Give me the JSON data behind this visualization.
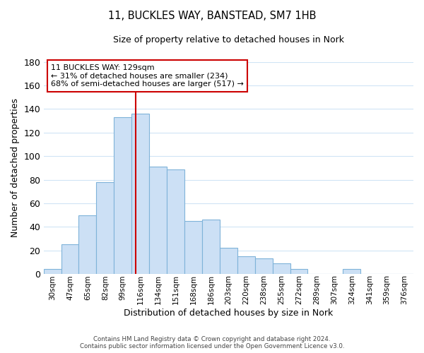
{
  "title": "11, BUCKLES WAY, BANSTEAD, SM7 1HB",
  "subtitle": "Size of property relative to detached houses in Nork",
  "xlabel": "Distribution of detached houses by size in Nork",
  "ylabel": "Number of detached properties",
  "bar_labels": [
    "30sqm",
    "47sqm",
    "65sqm",
    "82sqm",
    "99sqm",
    "116sqm",
    "134sqm",
    "151sqm",
    "168sqm",
    "186sqm",
    "203sqm",
    "220sqm",
    "238sqm",
    "255sqm",
    "272sqm",
    "289sqm",
    "307sqm",
    "324sqm",
    "341sqm",
    "359sqm",
    "376sqm"
  ],
  "bar_values": [
    4,
    25,
    50,
    78,
    133,
    136,
    91,
    89,
    45,
    46,
    22,
    15,
    13,
    9,
    4,
    0,
    0,
    4,
    0,
    0,
    0
  ],
  "bar_color": "#cce0f5",
  "bar_edge_color": "#7fb3d9",
  "property_line_label": "11 BUCKLES WAY: 129sqm",
  "annotation_line1": "← 31% of detached houses are smaller (234)",
  "annotation_line2": "68% of semi-detached houses are larger (517) →",
  "annotation_box_color": "#ffffff",
  "annotation_box_edge": "#cc0000",
  "property_line_color": "#cc0000",
  "property_line_x": 4.73,
  "ylim": [
    0,
    180
  ],
  "yticks": [
    0,
    20,
    40,
    60,
    80,
    100,
    120,
    140,
    160,
    180
  ],
  "footer_line1": "Contains HM Land Registry data © Crown copyright and database right 2024.",
  "footer_line2": "Contains public sector information licensed under the Open Government Licence v3.0.",
  "bg_color": "#ffffff",
  "grid_color": "#d0e4f5",
  "figsize": [
    6.0,
    5.0
  ],
  "dpi": 100
}
